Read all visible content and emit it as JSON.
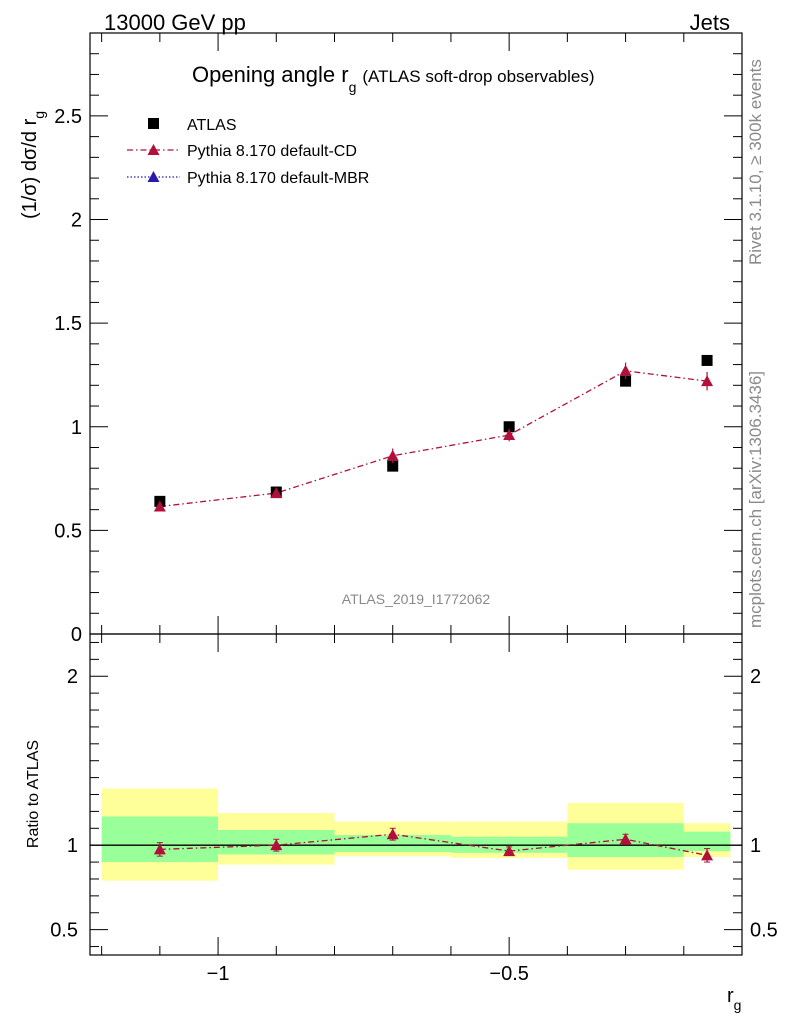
{
  "header": {
    "left": "13000 GeV pp",
    "right": "Jets"
  },
  "title": {
    "main": "Opening angle r",
    "sub": "g",
    "extra": "(ATLAS soft-drop observables)"
  },
  "side_labels": {
    "rivet": "Rivet 3.1.10, ≥ 300k events",
    "mcplots": "mcplots.cern.ch [arXiv:1306.3436]"
  },
  "watermark": "ATLAS_2019_I1772062",
  "legend": [
    {
      "label": "ATLAS",
      "color": "#000000",
      "marker": "square"
    },
    {
      "label": "Pythia 8.170 default-CD",
      "color": "#b0103a",
      "marker": "triangle",
      "dash": "dashdot"
    },
    {
      "label": "Pythia 8.170 default-MBR",
      "color": "#2a1aa8",
      "marker": "triangle",
      "dash": "dotted"
    }
  ],
  "colors": {
    "band_outer": "#ffff99",
    "band_inner": "#99ff99",
    "cd": "#b0103a",
    "mbr": "#2a1aa8"
  },
  "chart_data": {
    "type": "scatter",
    "x_label": "r",
    "x_label_sub": "g",
    "y_label": "(1/σ) dσ/d r",
    "y_label_sub": "g",
    "ratio_label": "Ratio to ATLAS",
    "xlim": [
      -1.22,
      -0.1
    ],
    "ylim": [
      0,
      2.9
    ],
    "ratio_ylim": [
      0.35,
      2.25
    ],
    "x_ticks": [
      -1,
      -0.5
    ],
    "x_tick_labels": [
      "−1",
      "−0.5"
    ],
    "y_ticks": [
      0.5,
      1,
      1.5,
      2,
      2.5
    ],
    "y_tick_labels": [
      "0.5",
      "1",
      "1.5",
      "2",
      "2.5"
    ],
    "y_zero_label": "0",
    "ratio_ticks": [
      0.5,
      1,
      2
    ],
    "ratio_tick_labels": [
      "0.5",
      "1",
      "2"
    ],
    "bins": [
      {
        "lo": -1.2,
        "hi": -1.0
      },
      {
        "lo": -1.0,
        "hi": -0.8
      },
      {
        "lo": -0.8,
        "hi": -0.6
      },
      {
        "lo": -0.6,
        "hi": -0.4
      },
      {
        "lo": -0.4,
        "hi": -0.2
      },
      {
        "lo": -0.2,
        "hi": -0.12
      }
    ],
    "atlas": {
      "name": "ATLAS",
      "x": [
        -1.1,
        -0.9,
        -0.7,
        -0.5,
        -0.3,
        -0.16
      ],
      "y": [
        0.64,
        0.685,
        0.81,
        1.0,
        1.22,
        1.32
      ]
    },
    "cd": {
      "name": "Pythia 8.170 default-CD",
      "x": [
        -1.1,
        -0.9,
        -0.7,
        -0.5,
        -0.3,
        -0.16
      ],
      "y": [
        0.615,
        0.68,
        0.86,
        0.96,
        1.27,
        1.22
      ],
      "err": [
        0.02,
        0.02,
        0.035,
        0.03,
        0.04,
        0.045
      ]
    },
    "ratio_cd": {
      "y": [
        0.975,
        1.0,
        1.065,
        0.965,
        1.035,
        0.94
      ],
      "err": [
        0.04,
        0.035,
        0.035,
        0.025,
        0.03,
        0.04
      ]
    },
    "ratio_band_outer": [
      {
        "lo": 0.79,
        "hi": 1.335
      },
      {
        "lo": 0.885,
        "hi": 1.19
      },
      {
        "lo": 0.935,
        "hi": 1.14
      },
      {
        "lo": 0.925,
        "hi": 1.14
      },
      {
        "lo": 0.855,
        "hi": 1.25
      },
      {
        "lo": 0.93,
        "hi": 1.13
      }
    ],
    "ratio_band_inner": [
      {
        "lo": 0.9,
        "hi": 1.17
      },
      {
        "lo": 0.945,
        "hi": 1.09
      },
      {
        "lo": 0.96,
        "hi": 1.06
      },
      {
        "lo": 0.955,
        "hi": 1.05
      },
      {
        "lo": 0.93,
        "hi": 1.13
      },
      {
        "lo": 0.965,
        "hi": 1.08
      }
    ]
  }
}
